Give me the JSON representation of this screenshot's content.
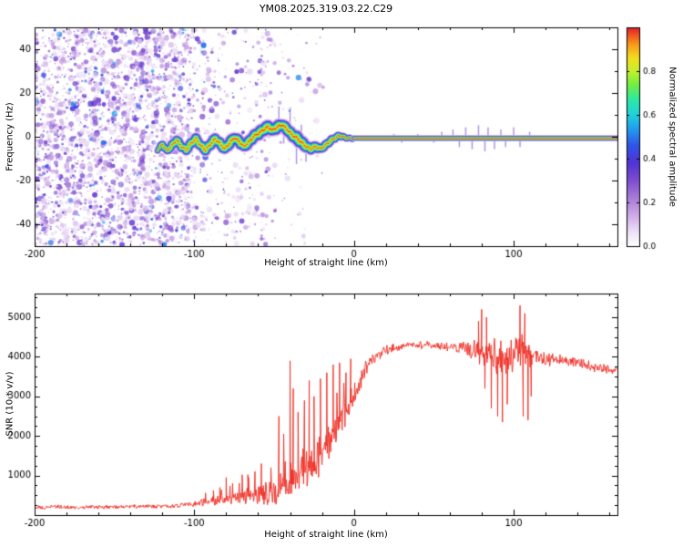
{
  "title": "YM08.2025.319.03.22.C29",
  "colors": {
    "axis": "#000000",
    "background": "#ffffff",
    "snr_line": "#ee2a20"
  },
  "chart_data": [
    {
      "type": "heatmap",
      "name": "spectrogram",
      "xlabel": "Height of straight line (km)",
      "ylabel": "Frequency (Hz)",
      "xlim": [
        -200,
        165
      ],
      "ylim": [
        -50,
        50
      ],
      "xticks": [
        -200,
        -100,
        0,
        100
      ],
      "yticks": [
        -40,
        -20,
        0,
        20,
        40
      ],
      "x_minor_step": 20,
      "y_minor_step": 10,
      "colorbar": {
        "label": "Normalized spectral amplitude",
        "ticks": [
          0.0,
          0.2,
          0.4,
          0.6,
          0.8
        ],
        "range": [
          0,
          1
        ]
      },
      "colormap": [
        [
          0.0,
          "#ffffff"
        ],
        [
          0.06,
          "#efe3f7"
        ],
        [
          0.14,
          "#cfaae8"
        ],
        [
          0.22,
          "#a87bd8"
        ],
        [
          0.3,
          "#7e4ecf"
        ],
        [
          0.38,
          "#5232d6"
        ],
        [
          0.46,
          "#2f55e8"
        ],
        [
          0.54,
          "#22a0ef"
        ],
        [
          0.6,
          "#1fd2dc"
        ],
        [
          0.67,
          "#2ce9a4"
        ],
        [
          0.74,
          "#74ef3f"
        ],
        [
          0.8,
          "#c6ef2d"
        ],
        [
          0.86,
          "#f2de1f"
        ],
        [
          0.92,
          "#f89c1b"
        ],
        [
          0.96,
          "#f25c22"
        ],
        [
          1.0,
          "#e01b2a"
        ]
      ],
      "noise_field": {
        "x_dense": [
          -200,
          -103
        ],
        "x_sparse": [
          -103,
          -58
        ],
        "x_rare": [
          -58,
          -18
        ],
        "f_range": [
          -49.5,
          49.5
        ],
        "dot_count": 3200
      },
      "trace": [
        [
          -123,
          -6,
          1.6
        ],
        [
          -120,
          -3.5,
          2.2
        ],
        [
          -117,
          -6.5,
          2.2
        ],
        [
          -114,
          -4,
          2.6
        ],
        [
          -111,
          -1.5,
          2.6
        ],
        [
          -108,
          -4.5,
          2.6
        ],
        [
          -105,
          -6,
          2.6
        ],
        [
          -102,
          -3,
          2.8
        ],
        [
          -99,
          -1,
          2.8
        ],
        [
          -96,
          -4,
          2.8
        ],
        [
          -93,
          -6,
          2.8
        ],
        [
          -90,
          -3.5,
          3
        ],
        [
          -87,
          -1,
          3
        ],
        [
          -84,
          -3,
          3
        ],
        [
          -81,
          -5.5,
          3
        ],
        [
          -78,
          -3,
          3.2
        ],
        [
          -75,
          -0.5,
          3.2
        ],
        [
          -72,
          -2,
          3.2
        ],
        [
          -69,
          -4.5,
          3
        ],
        [
          -66,
          -2.5,
          3.2
        ],
        [
          -63,
          0,
          3.2
        ],
        [
          -60,
          1.5,
          3.4
        ],
        [
          -57,
          3,
          3.4
        ],
        [
          -54,
          4.5,
          3.4
        ],
        [
          -51,
          3,
          3.4
        ],
        [
          -48,
          4.5,
          3.4
        ],
        [
          -45,
          5.5,
          3.2
        ],
        [
          -42,
          3.5,
          3.2
        ],
        [
          -39,
          1,
          3.2
        ],
        [
          -36,
          -0.5,
          3.6
        ],
        [
          -33,
          -2.5,
          3.4
        ],
        [
          -30,
          -4.5,
          3
        ],
        [
          -27,
          -5.5,
          2.8
        ],
        [
          -24,
          -4.5,
          2.8
        ],
        [
          -21,
          -5.5,
          2.6
        ],
        [
          -18,
          -4,
          2.4
        ],
        [
          -15,
          -2,
          2.4
        ],
        [
          -12,
          -0.5,
          2.2
        ],
        [
          -9,
          0.5,
          2
        ],
        [
          -6,
          -0.3,
          1.8
        ],
        [
          -3,
          -0.7,
          1.6
        ],
        [
          0,
          -0.7,
          1.5
        ]
      ],
      "spurs": [
        [
          -47,
          9
        ],
        [
          -44,
          -8
        ],
        [
          -40,
          11
        ],
        [
          -36,
          -12
        ],
        [
          -33,
          8
        ],
        [
          -30,
          -7
        ],
        [
          25,
          2
        ],
        [
          30,
          -2
        ],
        [
          40,
          2
        ],
        [
          50,
          -2
        ],
        [
          55,
          3
        ],
        [
          62,
          4
        ],
        [
          66,
          -4
        ],
        [
          70,
          5
        ],
        [
          74,
          -5
        ],
        [
          78,
          6
        ],
        [
          82,
          -6
        ],
        [
          84,
          5
        ],
        [
          88,
          -5
        ],
        [
          92,
          4
        ],
        [
          95,
          -4
        ],
        [
          100,
          5
        ],
        [
          104,
          -4
        ],
        [
          110,
          3
        ]
      ],
      "flat_line": {
        "x_start": 0,
        "x_end": 165,
        "f": -0.7,
        "halfwidth_hz": 1.4
      }
    },
    {
      "type": "line",
      "name": "snr",
      "xlabel": "Height of straight line (km)",
      "ylabel": "SNR (10 * v/v)",
      "xlim": [
        -200,
        165
      ],
      "ylim": [
        0,
        5600
      ],
      "xticks": [
        -200,
        -100,
        0,
        100
      ],
      "yticks": [
        1000,
        2000,
        3000,
        4000,
        5000
      ],
      "x_minor_step": 20,
      "y_minor_step": 250,
      "color": "#ee2a20",
      "base_points": [
        [
          -200,
          200
        ],
        [
          -150,
          210
        ],
        [
          -120,
          220
        ],
        [
          -105,
          260
        ],
        [
          -95,
          330
        ],
        [
          -85,
          380
        ],
        [
          -80,
          420
        ],
        [
          -70,
          450
        ],
        [
          -60,
          500
        ],
        [
          -50,
          600
        ],
        [
          -40,
          800
        ],
        [
          -30,
          1100
        ],
        [
          -20,
          1600
        ],
        [
          -10,
          2300
        ],
        [
          -5,
          2600
        ],
        [
          0,
          3000
        ],
        [
          5,
          3500
        ],
        [
          10,
          3900
        ],
        [
          20,
          4150
        ],
        [
          30,
          4250
        ],
        [
          40,
          4300
        ],
        [
          50,
          4300
        ],
        [
          60,
          4250
        ],
        [
          70,
          4200
        ],
        [
          75,
          4150
        ],
        [
          80,
          4100
        ],
        [
          85,
          4050
        ],
        [
          90,
          4000
        ],
        [
          95,
          3980
        ],
        [
          100,
          4000
        ],
        [
          105,
          4100
        ],
        [
          110,
          4050
        ],
        [
          120,
          3950
        ],
        [
          130,
          3900
        ],
        [
          140,
          3850
        ],
        [
          150,
          3750
        ],
        [
          160,
          3680
        ],
        [
          165,
          3650
        ]
      ],
      "noise_amplitude": [
        [
          -200,
          60
        ],
        [
          -120,
          60
        ],
        [
          -100,
          90
        ],
        [
          -85,
          150
        ],
        [
          -70,
          200
        ],
        [
          -55,
          350
        ],
        [
          -45,
          500
        ],
        [
          -35,
          550
        ],
        [
          -25,
          600
        ],
        [
          -15,
          550
        ],
        [
          -5,
          450
        ],
        [
          0,
          350
        ],
        [
          10,
          180
        ],
        [
          30,
          120
        ],
        [
          60,
          130
        ],
        [
          75,
          300
        ],
        [
          85,
          500
        ],
        [
          95,
          550
        ],
        [
          105,
          500
        ],
        [
          115,
          200
        ],
        [
          140,
          140
        ],
        [
          165,
          130
        ]
      ],
      "spikes": [
        [
          -93,
          560
        ],
        [
          -88,
          620
        ],
        [
          -84,
          700
        ],
        [
          -80,
          950
        ],
        [
          -76,
          800
        ],
        [
          -70,
          1020
        ],
        [
          -66,
          950
        ],
        [
          -62,
          1100
        ],
        [
          -58,
          1300
        ],
        [
          -52,
          1200
        ],
        [
          -47,
          2500
        ],
        [
          -44,
          2050
        ],
        [
          -40,
          3900
        ],
        [
          -38,
          3200
        ],
        [
          -35,
          2600
        ],
        [
          -31,
          2900
        ],
        [
          -28,
          3400
        ],
        [
          -25,
          3000
        ],
        [
          -21,
          3450
        ],
        [
          -17,
          3600
        ],
        [
          -13,
          3800
        ],
        [
          -9,
          3850
        ],
        [
          -5,
          3600
        ],
        [
          -2,
          3950
        ],
        [
          78,
          4900
        ],
        [
          80,
          5200
        ],
        [
          82,
          3200
        ],
        [
          83,
          5000
        ],
        [
          86,
          2700
        ],
        [
          90,
          2500
        ],
        [
          93,
          2350
        ],
        [
          96,
          2800
        ],
        [
          104,
          5300
        ],
        [
          106,
          2500
        ],
        [
          107,
          5100
        ],
        [
          109,
          2400
        ],
        [
          111,
          3000
        ]
      ]
    }
  ]
}
